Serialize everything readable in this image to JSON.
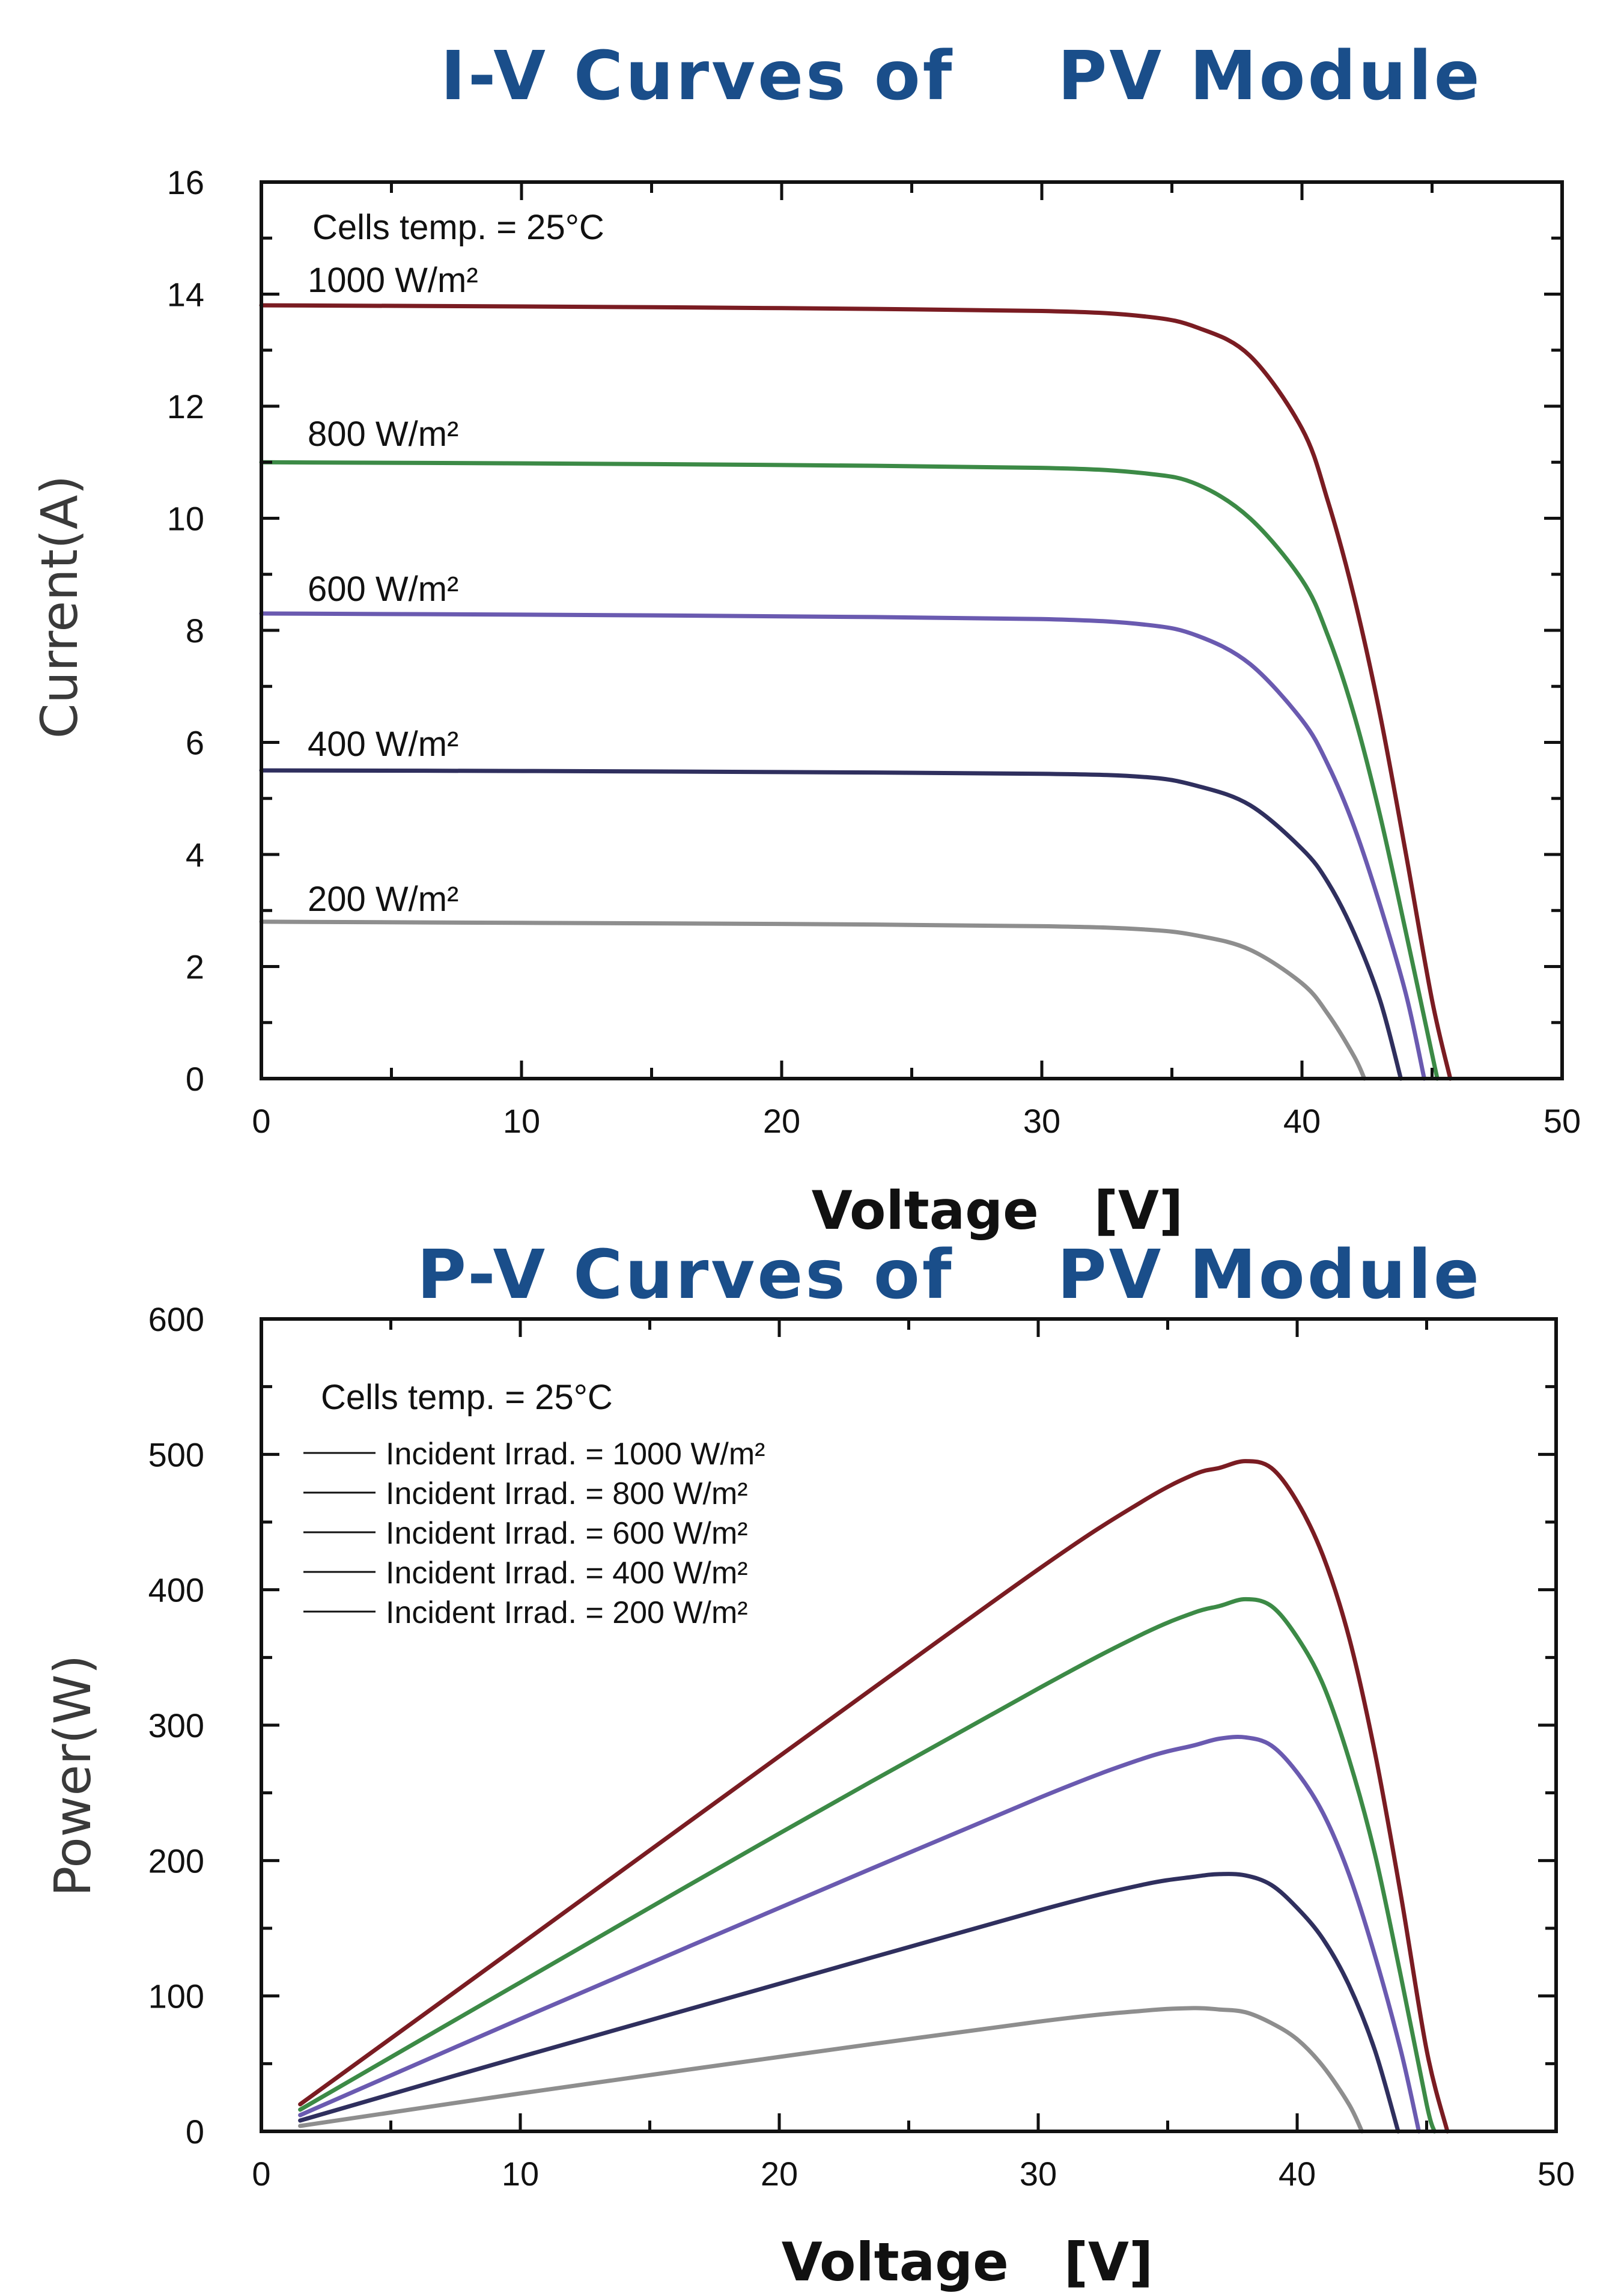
{
  "colors": {
    "axis": "#111111",
    "title": "#1a4e8a",
    "label": "#3a3a3a",
    "series": [
      "#7a1c22",
      "#3c8a46",
      "#6a5ab0",
      "#2f2f5e",
      "#8e8e8e"
    ]
  },
  "chart_data": [
    {
      "type": "line",
      "title": "I-V Curves of    PV Module",
      "xlabel": "Voltage   [V]",
      "ylabel": "Current(A)",
      "xlim": [
        0,
        50
      ],
      "ylim": [
        0,
        16
      ],
      "xticks": [
        "0",
        "10",
        "20",
        "30",
        "40",
        "50"
      ],
      "yticks": [
        "0",
        "2",
        "4",
        "6",
        "8",
        "10",
        "12",
        "14",
        "16"
      ],
      "annotation": "Cells temp. = 25°C",
      "grid": false,
      "series": [
        {
          "name": "1000 W/m²",
          "x": [
            0,
            10,
            20,
            30,
            34,
            36,
            38,
            40,
            41,
            42,
            43,
            44,
            45,
            45.7
          ],
          "y": [
            13.8,
            13.78,
            13.75,
            13.7,
            13.6,
            13.4,
            12.9,
            11.6,
            10.3,
            8.6,
            6.5,
            4.0,
            1.4,
            0
          ]
        },
        {
          "name": "800 W/m²",
          "x": [
            0,
            10,
            20,
            30,
            34,
            36,
            38,
            40,
            41,
            42,
            43,
            44,
            45.2
          ],
          "y": [
            11.0,
            10.98,
            10.95,
            10.9,
            10.8,
            10.6,
            10.0,
            8.9,
            7.9,
            6.5,
            4.7,
            2.6,
            0
          ]
        },
        {
          "name": "600 W/m²",
          "x": [
            0,
            10,
            20,
            30,
            34,
            36,
            38,
            40,
            41,
            42,
            43,
            44,
            44.7
          ],
          "y": [
            8.3,
            8.28,
            8.25,
            8.2,
            8.1,
            7.9,
            7.4,
            6.4,
            5.6,
            4.5,
            3.1,
            1.5,
            0
          ]
        },
        {
          "name": "400 W/m²",
          "x": [
            0,
            10,
            20,
            30,
            34,
            36,
            38,
            40,
            41,
            42,
            43,
            43.8
          ],
          "y": [
            5.5,
            5.49,
            5.47,
            5.44,
            5.38,
            5.22,
            4.88,
            4.1,
            3.5,
            2.6,
            1.4,
            0
          ]
        },
        {
          "name": "200 W/m²",
          "x": [
            0,
            10,
            20,
            30,
            34,
            36,
            38,
            40,
            41,
            42,
            42.4
          ],
          "y": [
            2.8,
            2.78,
            2.76,
            2.72,
            2.66,
            2.55,
            2.3,
            1.7,
            1.15,
            0.4,
            0
          ]
        }
      ]
    },
    {
      "type": "line",
      "title": "P-V Curves of    PV Module",
      "xlabel": "Voltage   [V]",
      "ylabel": "Power(W)",
      "xlim": [
        0,
        50
      ],
      "ylim": [
        0,
        600
      ],
      "xticks": [
        "0",
        "10",
        "20",
        "30",
        "40",
        "50"
      ],
      "yticks": [
        "0",
        "100",
        "200",
        "300",
        "400",
        "500",
        "600"
      ],
      "annotation": "Cells temp. = 25°C",
      "legend_position": "top-left",
      "grid": false,
      "series": [
        {
          "name": "Incident Irrad. = 1000 W/m²",
          "x": [
            1.5,
            10,
            20,
            30,
            34,
            36,
            37,
            38,
            39,
            40,
            41,
            42,
            43,
            44,
            45,
            45.8
          ],
          "y": [
            20,
            138,
            277,
            415,
            465,
            485,
            490,
            495,
            490,
            465,
            425,
            365,
            280,
            175,
            60,
            0
          ]
        },
        {
          "name": "Incident Irrad. = 800 W/m²",
          "x": [
            1.5,
            10,
            20,
            30,
            34,
            36,
            37,
            38,
            39,
            40,
            41,
            42,
            43,
            44,
            45,
            45.3
          ],
          "y": [
            16,
            110,
            220,
            327,
            367,
            383,
            388,
            393,
            388,
            365,
            330,
            275,
            205,
            115,
            20,
            0
          ]
        },
        {
          "name": "Incident Irrad. = 600 W/m²",
          "x": [
            1.5,
            10,
            20,
            30,
            34,
            36,
            37,
            38,
            39,
            40,
            41,
            42,
            43,
            44,
            44.7
          ],
          "y": [
            12,
            83,
            165,
            246,
            275,
            285,
            290,
            291,
            285,
            265,
            235,
            190,
            130,
            60,
            0
          ]
        },
        {
          "name": "Incident Irrad. = 400 W/m²",
          "x": [
            1.5,
            10,
            20,
            30,
            34,
            36,
            37,
            38,
            39,
            40,
            41,
            42,
            43,
            43.9
          ],
          "y": [
            8,
            55,
            109,
            163,
            182,
            188,
            190,
            189,
            182,
            165,
            142,
            108,
            60,
            0
          ]
        },
        {
          "name": "Incident Irrad. = 200 W/m²",
          "x": [
            1.5,
            10,
            20,
            30,
            34,
            36,
            37,
            38,
            39,
            40,
            41,
            42,
            42.5
          ],
          "y": [
            4,
            28,
            55,
            81,
            89,
            91,
            90,
            88,
            80,
            68,
            48,
            20,
            0
          ]
        }
      ]
    }
  ]
}
